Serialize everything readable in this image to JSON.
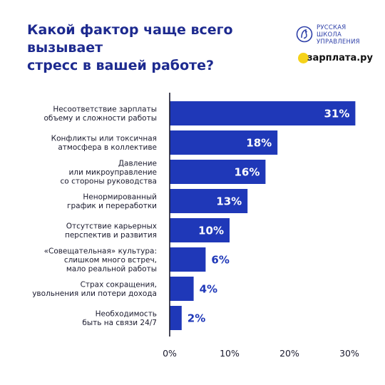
{
  "header": {
    "title_line1": "Какой фактор чаще всего вызывает",
    "title_line2": "стресс в вашей работе?"
  },
  "logos": {
    "rsu": {
      "line1": "РУССКАЯ",
      "line2": "ШКОЛА",
      "line3": "УПРАВЛЕНИЯ",
      "icon": "rsu-emblem-icon"
    },
    "zarplata": {
      "text": "зарплата.ру",
      "icon": "zarplata-z-icon"
    }
  },
  "colors": {
    "bar": "#1f38b8",
    "title": "#1d2a8f",
    "value_outside": "#1f38b8",
    "value_inside": "#ffffff"
  },
  "chart_data": {
    "type": "bar",
    "orientation": "horizontal",
    "categories": [
      [
        "Несоответствие зарплаты",
        "объему и сложности работы"
      ],
      [
        "Конфликты или токсичная",
        "атмосфера в коллективе"
      ],
      [
        "Давление",
        "или микроуправление",
        "со стороны руководства"
      ],
      [
        "Ненормированный",
        "график и переработки"
      ],
      [
        "Отсутствие карьерных",
        "перспектив и развития"
      ],
      [
        "«Совещательная» культура:",
        "слишком много встреч,",
        "мало реальной работы"
      ],
      [
        "Страх сокращения,",
        "увольнения или потери дохода"
      ],
      [
        "Необходимость",
        "быть на связи 24/7"
      ]
    ],
    "values": [
      31,
      18,
      16,
      13,
      10,
      6,
      4,
      2
    ],
    "value_labels": [
      "31%",
      "18%",
      "16%",
      "13%",
      "10%",
      "6%",
      "4%",
      "2%"
    ],
    "xlim": [
      0,
      32
    ],
    "ticks": [
      0,
      10,
      20,
      30
    ],
    "tick_labels": [
      "0%",
      "10%",
      "20%",
      "30%"
    ],
    "grid": false
  }
}
